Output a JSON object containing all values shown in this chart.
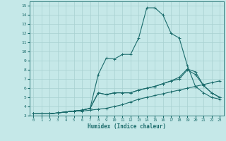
{
  "xlabel": "Humidex (Indice chaleur)",
  "xlim": [
    -0.5,
    23.5
  ],
  "ylim": [
    3,
    15.5
  ],
  "xticks": [
    0,
    1,
    2,
    3,
    4,
    5,
    6,
    7,
    8,
    9,
    10,
    11,
    12,
    13,
    14,
    15,
    16,
    17,
    18,
    19,
    20,
    21,
    22,
    23
  ],
  "yticks": [
    3,
    4,
    5,
    6,
    7,
    8,
    9,
    10,
    11,
    12,
    13,
    14,
    15
  ],
  "bg_color": "#c5e8e8",
  "line_color": "#1a6b6b",
  "grid_color": "#a8d0d0",
  "series": [
    {
      "x": [
        0,
        1,
        2,
        3,
        4,
        5,
        6,
        7,
        8,
        9,
        10,
        11,
        12,
        13,
        14,
        15,
        16,
        17,
        18,
        19,
        20,
        21,
        22,
        23
      ],
      "y": [
        3.2,
        3.2,
        3.2,
        3.3,
        3.4,
        3.5,
        3.5,
        3.6,
        3.7,
        3.8,
        4.0,
        4.2,
        4.5,
        4.8,
        5.0,
        5.2,
        5.4,
        5.6,
        5.8,
        6.0,
        6.2,
        6.4,
        6.6,
        6.8
      ]
    },
    {
      "x": [
        0,
        1,
        2,
        3,
        4,
        5,
        6,
        7,
        8,
        9,
        10,
        11,
        12,
        13,
        14,
        15,
        16,
        17,
        18,
        19,
        20,
        21,
        22,
        23
      ],
      "y": [
        3.2,
        3.2,
        3.2,
        3.3,
        3.4,
        3.5,
        3.6,
        3.8,
        5.5,
        5.3,
        5.5,
        5.5,
        5.5,
        5.8,
        6.0,
        6.2,
        6.5,
        6.8,
        7.0,
        8.0,
        7.5,
        6.3,
        5.5,
        5.0
      ]
    },
    {
      "x": [
        0,
        1,
        2,
        3,
        4,
        5,
        6,
        7,
        8,
        9,
        10,
        11,
        12,
        13,
        14,
        15,
        16,
        17,
        18,
        19,
        20,
        21,
        22,
        23
      ],
      "y": [
        3.2,
        3.2,
        3.2,
        3.3,
        3.4,
        3.5,
        3.6,
        3.8,
        7.5,
        9.3,
        9.2,
        9.7,
        9.7,
        11.5,
        14.8,
        14.8,
        14.0,
        12.0,
        11.5,
        8.5,
        6.2,
        5.5,
        5.0,
        4.8
      ]
    },
    {
      "x": [
        0,
        1,
        2,
        3,
        4,
        5,
        6,
        7,
        8,
        9,
        10,
        11,
        12,
        13,
        14,
        15,
        16,
        17,
        18,
        19,
        20,
        21,
        22,
        23
      ],
      "y": [
        3.2,
        3.2,
        3.2,
        3.3,
        3.4,
        3.5,
        3.6,
        3.8,
        5.5,
        5.3,
        5.5,
        5.5,
        5.5,
        5.8,
        6.0,
        6.2,
        6.5,
        6.8,
        7.2,
        8.1,
        7.8,
        6.3,
        5.5,
        5.0
      ]
    }
  ]
}
